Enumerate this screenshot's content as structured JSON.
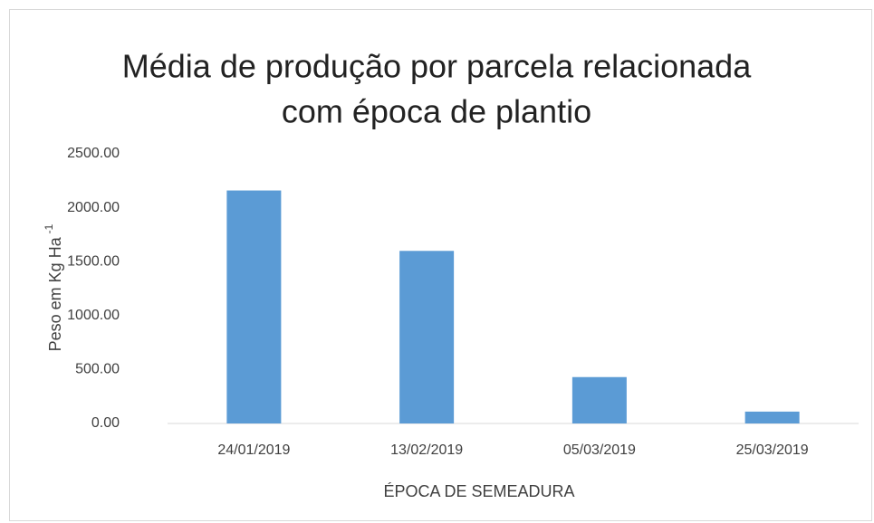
{
  "chart_data": {
    "type": "bar",
    "title": [
      "Média de produção por parcela relacionada",
      "com época de plantio"
    ],
    "xlabel": "ÉPOCA DE SEMEADURA",
    "ylabel": "Peso em Kg Ha",
    "ylabel_superscript": "-1",
    "categories": [
      "24/01/2019",
      "13/02/2019",
      "05/03/2019",
      "25/03/2019"
    ],
    "values": [
      2160,
      1600,
      430,
      110
    ],
    "color": "#5b9bd5",
    "ylim": [
      0,
      2500
    ],
    "yticks": [
      {
        "value": 0,
        "label": "0.00"
      },
      {
        "value": 500,
        "label": "500.00"
      },
      {
        "value": 1000,
        "label": "1000.00"
      },
      {
        "value": 1500,
        "label": "1500.00"
      },
      {
        "value": 2000,
        "label": "2000.00"
      },
      {
        "value": 2500,
        "label": "2500.00"
      }
    ],
    "grid": false
  }
}
